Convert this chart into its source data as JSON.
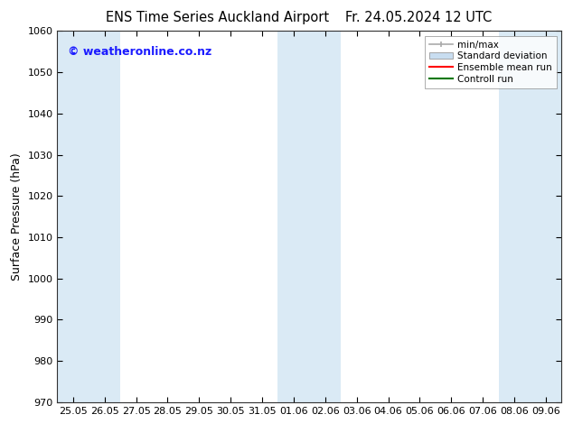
{
  "title_left": "ENS Time Series Auckland Airport",
  "title_right": "Fr. 24.05.2024 12 UTC",
  "ylabel": "Surface Pressure (hPa)",
  "ylim": [
    970,
    1060
  ],
  "yticks": [
    970,
    980,
    990,
    1000,
    1010,
    1020,
    1030,
    1040,
    1050,
    1060
  ],
  "x_labels": [
    "25.05",
    "26.05",
    "27.05",
    "28.05",
    "29.05",
    "30.05",
    "31.05",
    "01.06",
    "02.06",
    "03.06",
    "04.06",
    "05.06",
    "06.06",
    "07.06",
    "08.06",
    "09.06"
  ],
  "shaded_indices": [
    0,
    1,
    7,
    8,
    14,
    15
  ],
  "band_color": "#daeaf5",
  "background_color": "#ffffff",
  "watermark": "© weatheronline.co.nz",
  "watermark_color": "#1a1aff",
  "legend_items": [
    {
      "label": "min/max",
      "color": "#aaaaaa",
      "type": "errorbar"
    },
    {
      "label": "Standard deviation",
      "color": "#c8ddf0",
      "type": "box"
    },
    {
      "label": "Ensemble mean run",
      "color": "#ff0000",
      "type": "line"
    },
    {
      "label": "Controll run",
      "color": "#007700",
      "type": "line"
    }
  ],
  "spine_color": "#333333",
  "title_fontsize": 10.5,
  "axis_label_fontsize": 9,
  "tick_fontsize": 8,
  "watermark_fontsize": 9,
  "legend_fontsize": 7.5
}
